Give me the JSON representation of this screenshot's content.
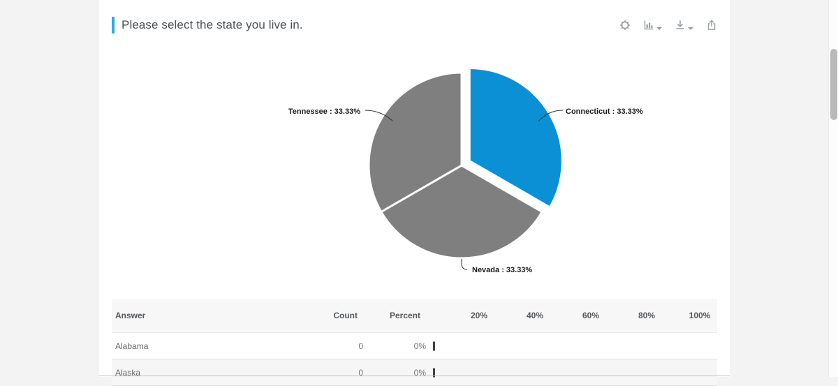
{
  "header": {
    "title": "Please select the state you live in."
  },
  "toolbar": {
    "icons": [
      "settings",
      "chart-type",
      "download",
      "share"
    ]
  },
  "chart_data": {
    "type": "pie",
    "title": "Please select the state you live in.",
    "legend": "none",
    "slices": [
      {
        "label": "Connecticut",
        "value": 33.33,
        "display": "Connecticut : 33.33%",
        "color": "#0b90d5",
        "exploded": true
      },
      {
        "label": "Nevada",
        "value": 33.33,
        "display": "Nevada : 33.33%",
        "color": "#7f7f7f",
        "exploded": false
      },
      {
        "label": "Tennessee",
        "value": 33.33,
        "display": "Tennessee : 33.33%",
        "color": "#7f7f7f",
        "exploded": false
      }
    ]
  },
  "table": {
    "headers": {
      "answer": "Answer",
      "count": "Count",
      "percent": "Percent"
    },
    "scale_labels": [
      "20%",
      "40%",
      "60%",
      "80%",
      "100%"
    ],
    "rows": [
      {
        "answer": "Alabama",
        "count": "0",
        "percent": "0%",
        "bar_value": 0
      },
      {
        "answer": "Alaska",
        "count": "0",
        "percent": "0%",
        "bar_value": 0
      }
    ]
  },
  "colors": {
    "accent": "#2da9e2",
    "pie_blue": "#0b90d5",
    "pie_gray": "#7f7f7f"
  }
}
